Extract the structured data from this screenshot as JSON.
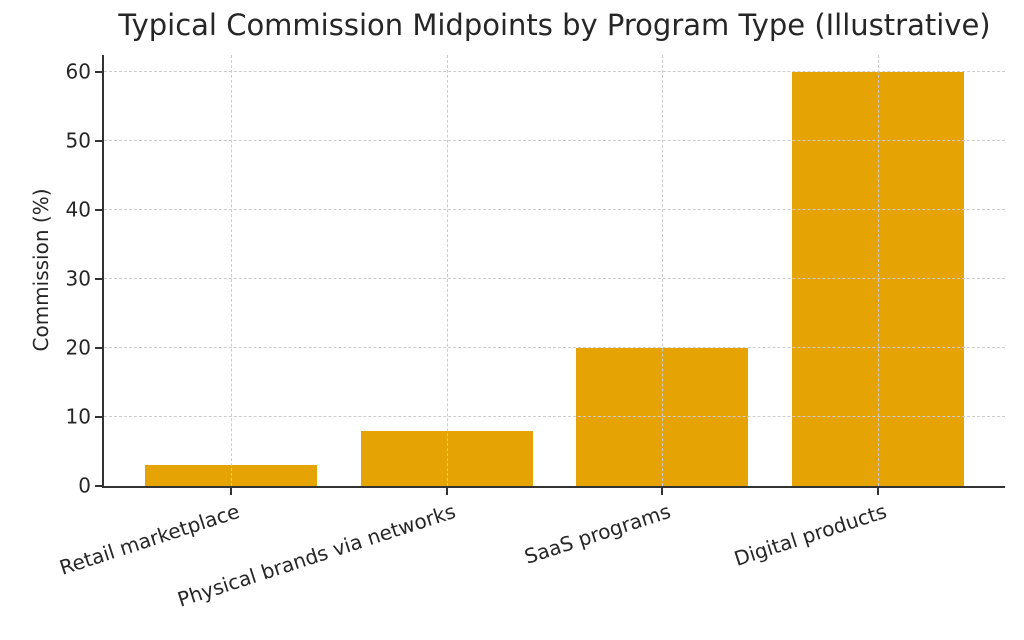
{
  "chart_data": {
    "type": "bar",
    "title": "Typical Commission Midpoints by Program Type (Illustrative)",
    "ylabel": "Commission (%)",
    "xlabel": "",
    "categories": [
      "Retail marketplace",
      "Physical brands via networks",
      "SaaS programs",
      "Digital products"
    ],
    "values": [
      3,
      8,
      20,
      60
    ],
    "yticks": [
      0,
      10,
      20,
      30,
      40,
      50,
      60
    ],
    "ylim": [
      0,
      62.5
    ],
    "xtick_rotation_deg": 18,
    "grid": {
      "visible": true,
      "style": "dashed",
      "axes": "both",
      "drawn_above_bars": true
    },
    "legend": null,
    "colors": {
      "bar": "#E6A304",
      "grid": "#cccccc",
      "axis": "#333333",
      "text": "#262626",
      "background": "#ffffff"
    }
  }
}
